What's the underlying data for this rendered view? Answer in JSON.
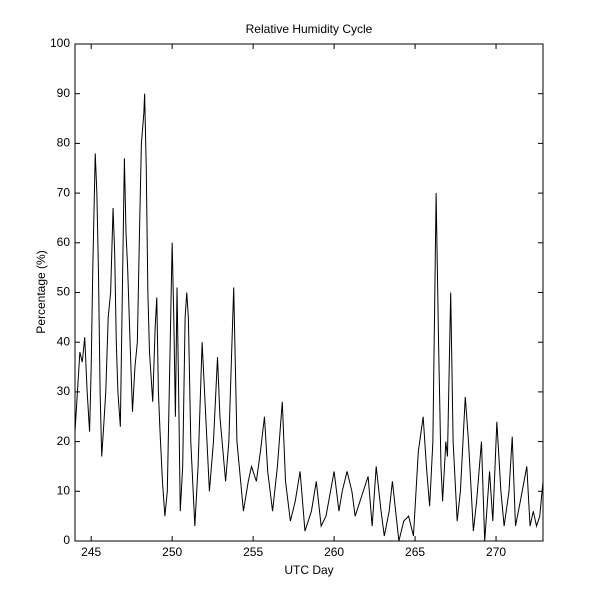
{
  "chart_data": {
    "type": "line",
    "title": "Relative Humidity Cycle",
    "x_label": "UTC Day",
    "y_label": "Percentage (%)",
    "x": [
      244.0,
      244.15,
      244.3,
      244.45,
      244.6,
      244.75,
      244.9,
      245.0,
      245.1,
      245.25,
      245.35,
      245.45,
      245.55,
      245.65,
      245.75,
      245.9,
      246.05,
      246.2,
      246.35,
      246.45,
      246.55,
      246.65,
      246.8,
      246.9,
      247.05,
      247.15,
      247.25,
      247.4,
      247.55,
      247.7,
      247.85,
      248.0,
      248.1,
      248.25,
      248.3,
      248.4,
      248.5,
      248.6,
      248.7,
      248.8,
      248.95,
      249.05,
      249.15,
      249.25,
      249.4,
      249.55,
      249.7,
      249.85,
      250.0,
      250.1,
      250.2,
      250.3,
      250.4,
      250.5,
      250.65,
      250.8,
      250.9,
      251.0,
      251.15,
      251.4,
      251.6,
      251.85,
      252.0,
      252.3,
      252.55,
      252.8,
      252.95,
      253.3,
      253.5,
      253.8,
      254.0,
      254.4,
      254.7,
      254.9,
      255.2,
      255.45,
      255.7,
      255.9,
      256.2,
      256.5,
      256.8,
      257.0,
      257.3,
      257.6,
      257.9,
      258.2,
      258.6,
      258.9,
      259.2,
      259.5,
      260.0,
      260.3,
      260.5,
      260.8,
      261.1,
      261.3,
      261.7,
      262.1,
      262.35,
      262.6,
      262.9,
      263.1,
      263.4,
      263.6,
      263.9,
      264.0,
      264.3,
      264.6,
      264.9,
      265.2,
      265.5,
      265.7,
      265.9,
      266.1,
      266.3,
      266.45,
      266.6,
      266.7,
      266.9,
      267.0,
      267.2,
      267.35,
      267.6,
      267.8,
      268.1,
      268.3,
      268.6,
      268.8,
      269.1,
      269.3,
      269.6,
      269.8,
      270.05,
      270.3,
      270.5,
      270.8,
      271.0,
      271.2,
      271.5,
      271.9,
      272.1,
      272.3,
      272.5,
      272.7,
      272.9
    ],
    "series": [
      {
        "color": "#000000",
        "values": [
          22,
          30,
          38,
          36,
          41,
          30,
          22,
          35,
          55,
          78,
          70,
          54,
          30,
          17,
          22,
          30,
          45,
          50,
          67,
          58,
          40,
          30,
          23,
          45,
          77,
          62,
          55,
          40,
          26,
          35,
          40,
          65,
          80,
          86,
          90,
          75,
          50,
          38,
          33,
          28,
          43,
          49,
          30,
          22,
          12,
          5,
          10,
          35,
          60,
          45,
          25,
          51,
          30,
          6,
          15,
          45,
          50,
          45,
          20,
          3,
          15,
          40,
          30,
          10,
          20,
          37,
          25,
          12,
          20,
          51,
          20,
          6,
          12,
          15,
          12,
          18,
          25,
          14,
          6,
          15,
          28,
          12,
          4,
          8,
          14,
          2,
          6,
          12,
          3,
          5,
          14,
          6,
          10,
          14,
          10,
          5,
          9,
          13,
          3,
          15,
          6,
          1,
          6,
          12,
          3,
          0,
          4,
          5,
          1,
          18,
          25,
          15,
          7,
          20,
          70,
          40,
          15,
          8,
          20,
          17,
          50,
          20,
          4,
          10,
          29,
          20,
          2,
          8,
          20,
          0,
          14,
          4,
          24,
          10,
          3,
          10,
          21,
          3,
          8,
          15,
          3,
          6,
          3,
          5,
          12
        ]
      }
    ],
    "xlim": [
      244,
      272.9
    ],
    "ylim": [
      0,
      100
    ],
    "xticks": [
      245,
      250,
      255,
      260,
      265,
      270
    ],
    "yticks": [
      0,
      10,
      20,
      30,
      40,
      50,
      60,
      70,
      80,
      90,
      100
    ]
  }
}
